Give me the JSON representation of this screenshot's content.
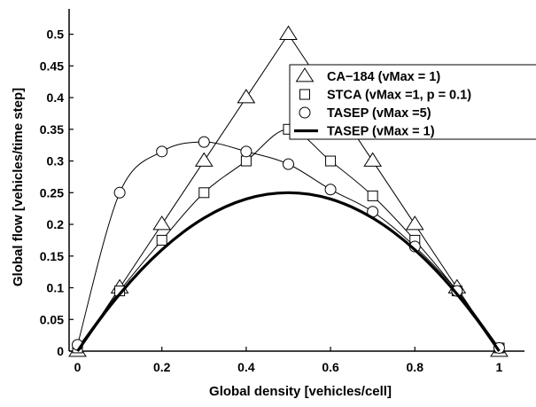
{
  "chart_data": {
    "type": "line",
    "title": "",
    "xlabel": "Global density [vehicles/cell]",
    "ylabel": "Global flow [vehicles/time step]",
    "xlim": [
      -0.02,
      1.06
    ],
    "ylim": [
      0,
      0.54
    ],
    "x_ticks": [
      "0",
      "0.2",
      "0.4",
      "0.6",
      "0.8",
      "1"
    ],
    "x_tick_values": [
      0,
      0.2,
      0.4,
      0.6,
      0.8,
      1.0
    ],
    "y_ticks": [
      "0",
      "0.05",
      "0.1",
      "0.15",
      "0.2",
      "0.25",
      "0.3",
      "0.35",
      "0.4",
      "0.45",
      "0.5"
    ],
    "y_tick_values": [
      0,
      0.05,
      0.1,
      0.15,
      0.2,
      0.25,
      0.3,
      0.35,
      0.4,
      0.45,
      0.5
    ],
    "legend_position": "top-right",
    "series": [
      {
        "name": "CA−184 (vMax = 1)",
        "marker": "triangle",
        "line": "thin",
        "x": [
          0,
          0.1,
          0.2,
          0.3,
          0.4,
          0.5,
          0.6,
          0.7,
          0.8,
          0.9,
          1.0
        ],
        "y": [
          0,
          0.1,
          0.2,
          0.3,
          0.4,
          0.5,
          0.4,
          0.3,
          0.2,
          0.1,
          0
        ]
      },
      {
        "name": "STCA (vMax =1, p = 0.1)",
        "marker": "square",
        "line": "thin",
        "x": [
          0,
          0.1,
          0.2,
          0.3,
          0.4,
          0.5,
          0.6,
          0.7,
          0.8,
          0.9,
          1.0
        ],
        "y": [
          0.005,
          0.095,
          0.175,
          0.25,
          0.3,
          0.35,
          0.3,
          0.245,
          0.175,
          0.095,
          0.005
        ]
      },
      {
        "name": "TASEP (vMax =5)",
        "marker": "circle",
        "line": "thin",
        "x": [
          0,
          0.1,
          0.2,
          0.3,
          0.4,
          0.5,
          0.6,
          0.7,
          0.8,
          0.9,
          1.0
        ],
        "y": [
          0.01,
          0.25,
          0.315,
          0.33,
          0.315,
          0.295,
          0.255,
          0.22,
          0.165,
          0.095,
          0.005
        ]
      },
      {
        "name": "TASEP (vMax = 1)",
        "marker": "none",
        "line": "thick",
        "x": [
          0,
          0.05,
          0.1,
          0.15,
          0.2,
          0.25,
          0.3,
          0.35,
          0.4,
          0.45,
          0.5,
          0.55,
          0.6,
          0.65,
          0.7,
          0.75,
          0.8,
          0.85,
          0.9,
          0.95,
          1.0
        ],
        "y": [
          0,
          0.0475,
          0.09,
          0.1275,
          0.16,
          0.1875,
          0.21,
          0.2275,
          0.24,
          0.2475,
          0.25,
          0.2475,
          0.24,
          0.2275,
          0.21,
          0.1875,
          0.16,
          0.1275,
          0.09,
          0.0475,
          0
        ]
      }
    ]
  }
}
